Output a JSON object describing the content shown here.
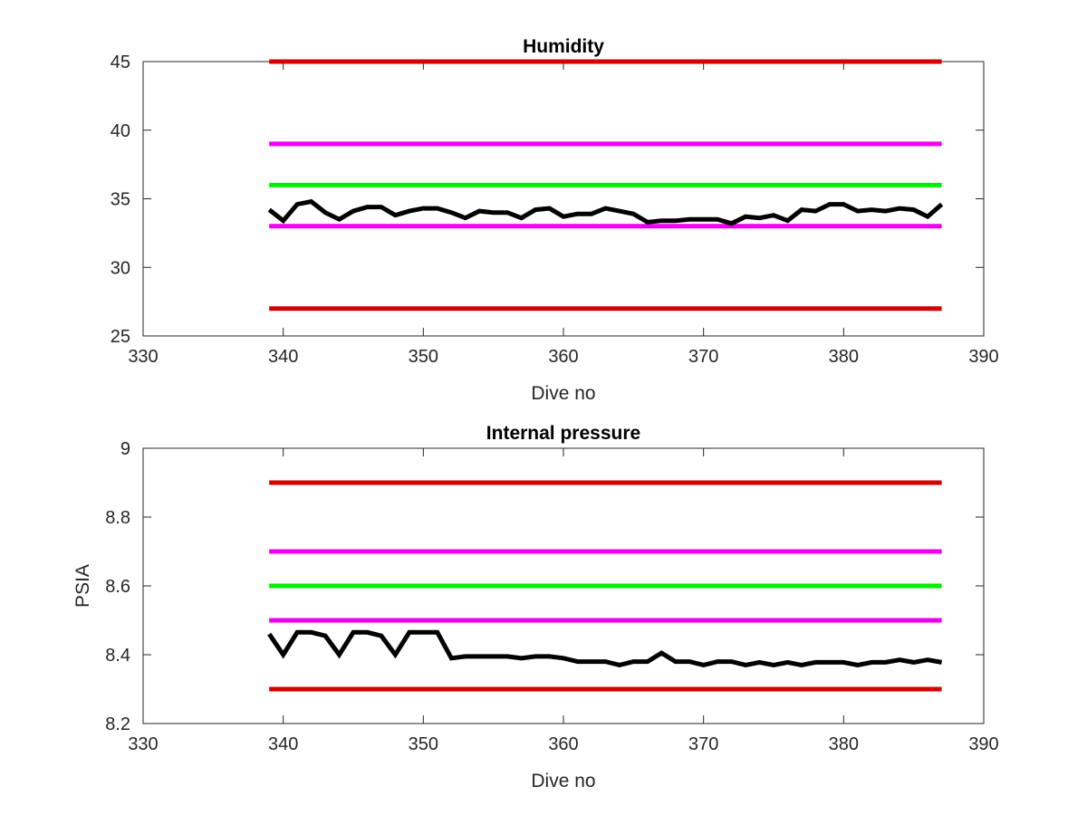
{
  "chart_data": [
    {
      "type": "line",
      "title": "Humidity",
      "xlabel": "Dive no",
      "ylabel": "",
      "xlim": [
        330,
        390
      ],
      "ylim": [
        25,
        45
      ],
      "xticks": [
        "330",
        "340",
        "350",
        "360",
        "370",
        "380",
        "390"
      ],
      "yticks": [
        "25",
        "30",
        "35",
        "40",
        "45"
      ],
      "grid": false,
      "reference_lines": [
        {
          "y": 45,
          "x_range": [
            339,
            387
          ],
          "color": "#d40000"
        },
        {
          "y": 39,
          "x_range": [
            339,
            387
          ],
          "color": "#ee00ee"
        },
        {
          "y": 36,
          "x_range": [
            339,
            387
          ],
          "color": "#00ee00"
        },
        {
          "y": 33,
          "x_range": [
            339,
            387
          ],
          "color": "#ee00ee"
        },
        {
          "y": 27,
          "x_range": [
            339,
            387
          ],
          "color": "#d40000"
        }
      ],
      "series": [
        {
          "color": "#000000",
          "x": [
            339,
            340,
            341,
            342,
            343,
            344,
            345,
            346,
            347,
            348,
            349,
            350,
            351,
            352,
            353,
            354,
            355,
            356,
            357,
            358,
            359,
            360,
            361,
            362,
            363,
            364,
            365,
            366,
            367,
            368,
            369,
            370,
            371,
            372,
            373,
            374,
            375,
            376,
            377,
            378,
            379,
            380,
            381,
            382,
            383,
            384,
            385,
            386,
            387
          ],
          "y": [
            34.2,
            33.4,
            34.6,
            34.8,
            34.0,
            33.5,
            34.1,
            34.4,
            34.4,
            33.8,
            34.1,
            34.3,
            34.3,
            34.0,
            33.6,
            34.1,
            34.0,
            34.0,
            33.6,
            34.2,
            34.3,
            33.7,
            33.9,
            33.9,
            34.3,
            34.1,
            33.9,
            33.3,
            33.4,
            33.4,
            33.5,
            33.5,
            33.5,
            33.2,
            33.7,
            33.6,
            33.8,
            33.4,
            34.2,
            34.1,
            34.6,
            34.6,
            34.1,
            34.2,
            34.1,
            34.3,
            34.2,
            33.7,
            34.6
          ]
        }
      ]
    },
    {
      "type": "line",
      "title": "Internal pressure",
      "xlabel": "Dive no",
      "ylabel": "PSIA",
      "xlim": [
        330,
        390
      ],
      "ylim": [
        8.2,
        9.0
      ],
      "xticks": [
        "330",
        "340",
        "350",
        "360",
        "370",
        "380",
        "390"
      ],
      "yticks": [
        "8.2",
        "8.4",
        "8.6",
        "8.8",
        "9"
      ],
      "grid": false,
      "reference_lines": [
        {
          "y": 8.9,
          "x_range": [
            339,
            387
          ],
          "color": "#d40000"
        },
        {
          "y": 8.7,
          "x_range": [
            339,
            387
          ],
          "color": "#ee00ee"
        },
        {
          "y": 8.6,
          "x_range": [
            339,
            387
          ],
          "color": "#00ee00"
        },
        {
          "y": 8.5,
          "x_range": [
            339,
            387
          ],
          "color": "#ee00ee"
        },
        {
          "y": 8.3,
          "x_range": [
            339,
            387
          ],
          "color": "#d40000"
        }
      ],
      "series": [
        {
          "color": "#000000",
          "x": [
            339,
            340,
            341,
            342,
            343,
            344,
            345,
            346,
            347,
            348,
            349,
            350,
            351,
            352,
            353,
            354,
            355,
            356,
            357,
            358,
            359,
            360,
            361,
            362,
            363,
            364,
            365,
            366,
            367,
            368,
            369,
            370,
            371,
            372,
            373,
            374,
            375,
            376,
            377,
            378,
            379,
            380,
            381,
            382,
            383,
            384,
            385,
            386,
            387
          ],
          "y": [
            8.46,
            8.4,
            8.465,
            8.465,
            8.455,
            8.4,
            8.465,
            8.465,
            8.455,
            8.4,
            8.465,
            8.465,
            8.465,
            8.39,
            8.395,
            8.395,
            8.395,
            8.395,
            8.39,
            8.395,
            8.395,
            8.39,
            8.38,
            8.38,
            8.38,
            8.37,
            8.38,
            8.38,
            8.405,
            8.38,
            8.38,
            8.37,
            8.38,
            8.38,
            8.37,
            8.378,
            8.37,
            8.378,
            8.37,
            8.378,
            8.378,
            8.378,
            8.37,
            8.378,
            8.378,
            8.385,
            8.378,
            8.385,
            8.378
          ]
        }
      ]
    }
  ]
}
